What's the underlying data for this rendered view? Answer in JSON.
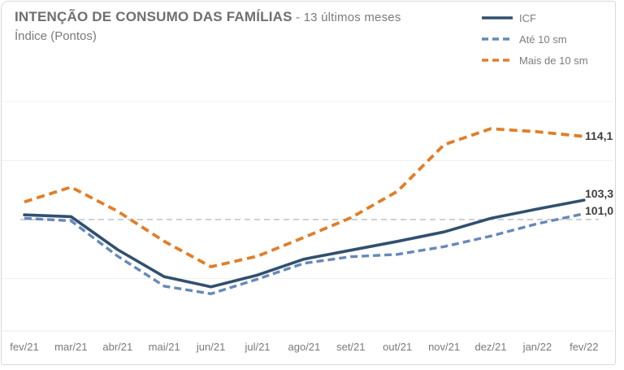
{
  "header": {
    "title": "INTENÇÃO DE CONSUMO DAS FAMÍLIAS",
    "title_suffix": " - 13 últimos meses",
    "subtitle": "Índice (Pontos)"
  },
  "legend": {
    "position": "top-right",
    "items": [
      {
        "label": "ICF",
        "color": "#31506F",
        "dash": "solid"
      },
      {
        "label": "Até 10 sm",
        "color": "#6689B8",
        "dash": "dashed"
      },
      {
        "label": "Mais de 10 sm",
        "color": "#E07F28",
        "dash": "dashed"
      }
    ]
  },
  "colors": {
    "icf": "#31506F",
    "ate_10_sm": "#6689B8",
    "mais_10_sm": "#E07F28",
    "reference_line": "#b5b5b5",
    "faint_gridline": "#f0f0f0",
    "axis_text": "#7a7a7a",
    "value_label_text": "#3f3f3f"
  },
  "chart_data": {
    "type": "line",
    "title": "INTENÇÃO DE CONSUMO DAS FAMÍLIAS - 13 últimos meses",
    "ylabel": "Índice (Pontos)",
    "xlabel": "",
    "categories": [
      "fev/21",
      "mar/21",
      "abr/21",
      "mai/21",
      "jun/21",
      "jul/21",
      "ago/21",
      "set/21",
      "out/21",
      "nov/21",
      "dez/21",
      "jan/22",
      "fev/22"
    ],
    "series": [
      {
        "name": "ICF",
        "style": "solid",
        "color": "#31506F",
        "values": [
          100.8,
          100.5,
          94.9,
          90.3,
          88.6,
          90.6,
          93.3,
          94.8,
          96.3,
          97.9,
          100.2,
          101.8,
          103.3
        ],
        "end_label": "103,3"
      },
      {
        "name": "Até 10 sm",
        "style": "dashed",
        "color": "#6689B8",
        "values": [
          100.2,
          99.8,
          93.8,
          88.7,
          87.4,
          89.9,
          92.6,
          93.7,
          94.1,
          95.4,
          97.2,
          99.3,
          101.0
        ],
        "end_label": "101,0"
      },
      {
        "name": "Mais de 10 sm",
        "style": "dashed",
        "color": "#E07F28",
        "values": [
          103.0,
          105.5,
          101.4,
          96.3,
          92.0,
          93.8,
          97.0,
          100.3,
          104.8,
          112.7,
          115.4,
          114.9,
          114.1
        ],
        "end_label": "114,1"
      }
    ],
    "reference_line": 100,
    "faint_gridlines": [
      90,
      110,
      120
    ],
    "ylim": [
      85,
      120
    ],
    "grid": "horizontal-minimal",
    "legend_position": "top-right"
  }
}
